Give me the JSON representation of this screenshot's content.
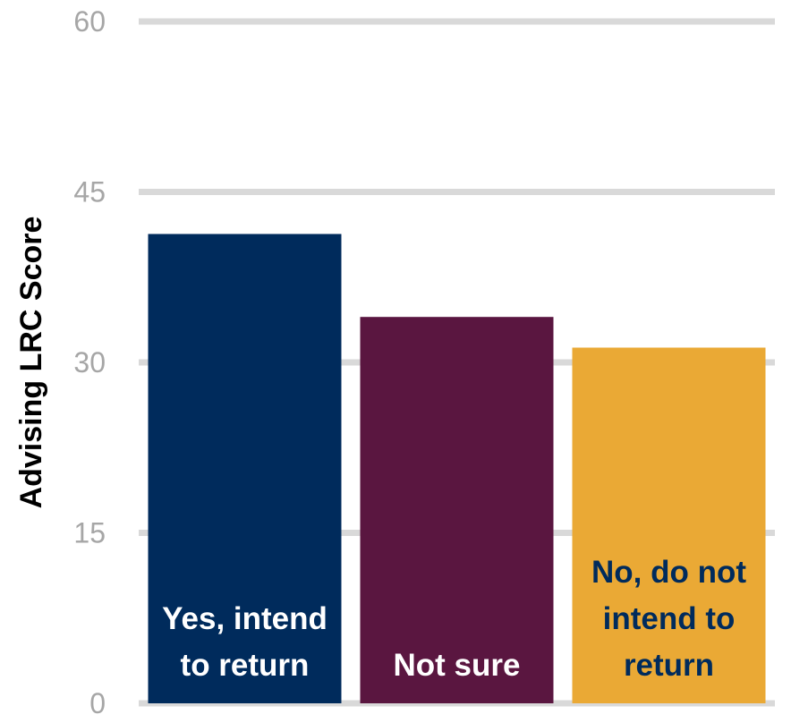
{
  "chart_data": {
    "type": "bar",
    "categories": [
      "Yes, intend to return",
      "Not sure",
      "No, do not intend to return"
    ],
    "category_label_lines": [
      [
        "Yes, intend",
        "to return"
      ],
      [
        "Not sure"
      ],
      [
        "No, do not",
        "intend to",
        "return"
      ]
    ],
    "values": [
      41.3,
      34,
      31.3
    ],
    "colors": [
      "#002b5c",
      "#5a1640",
      "#eaa935"
    ],
    "label_colors": [
      "#ffffff",
      "#ffffff",
      "#002b5c"
    ],
    "title": "",
    "xlabel": "",
    "ylabel": "Advising LRC Score",
    "ylim": [
      0,
      60
    ],
    "yticks": [
      0,
      15,
      30,
      45,
      60
    ],
    "grid": true,
    "gridline_color": "#d9d9d9",
    "tick_label_color": "#a6a6a6"
  }
}
